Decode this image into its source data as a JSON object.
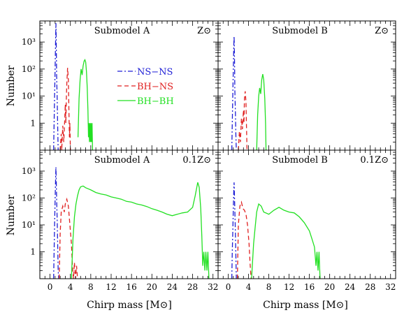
{
  "chart_data": {
    "type": "line",
    "xlabel": "Chirp mass [M⊙]",
    "ylabel": "Number",
    "scale": "log-y",
    "xlim": [
      -2,
      33
    ],
    "ylim": [
      0.1,
      6000
    ],
    "x_ticks": [
      0,
      4,
      8,
      12,
      16,
      20,
      24,
      28,
      32
    ],
    "y_ticks": [
      {
        "value": 1,
        "label": "1"
      },
      {
        "value": 10,
        "label": "10¹"
      },
      {
        "value": 100,
        "label": "10²"
      },
      {
        "value": 1000,
        "label": "10³"
      }
    ],
    "legend": {
      "placement": "upper middle of top-left panel",
      "entries": [
        {
          "name": "NS−NS",
          "color": "#1f1fd6",
          "dash": "dash-dot"
        },
        {
          "name": "BH−NS",
          "color": "#e02020",
          "dash": "dashed"
        },
        {
          "name": "BH−BH",
          "color": "#22e022",
          "dash": "solid"
        }
      ]
    },
    "colors": {
      "NS-NS": "#1f1fd6",
      "BH-NS": "#e02020",
      "BH-BH": "#22e022"
    },
    "panels": [
      {
        "id": "A-solar",
        "label": "Submodel A",
        "metallicity": "Z⊙",
        "series": [
          {
            "key": "NS-NS",
            "points": [
              [
                0.7,
                0.1
              ],
              [
                0.8,
                1
              ],
              [
                0.9,
                10
              ],
              [
                1.0,
                120
              ],
              [
                1.1,
                1500
              ],
              [
                1.15,
                5000
              ],
              [
                1.2,
                2000
              ],
              [
                1.25,
                300
              ],
              [
                1.3,
                60
              ],
              [
                1.4,
                8
              ],
              [
                1.5,
                0.8
              ],
              [
                1.6,
                0.1
              ]
            ]
          },
          {
            "key": "BH-NS",
            "points": [
              [
                2.0,
                0.1
              ],
              [
                2.2,
                0.4
              ],
              [
                2.3,
                0.1
              ],
              [
                2.5,
                0.8
              ],
              [
                2.7,
                0.2
              ],
              [
                2.9,
                1.5
              ],
              [
                3.0,
                5
              ],
              [
                3.1,
                1
              ],
              [
                3.2,
                8
              ],
              [
                3.3,
                30
              ],
              [
                3.45,
                110
              ],
              [
                3.6,
                40
              ],
              [
                3.7,
                4
              ],
              [
                3.8,
                0.3
              ],
              [
                3.9,
                1
              ],
              [
                4.0,
                0.1
              ]
            ]
          },
          {
            "key": "BH-BH",
            "points": [
              [
                5.5,
                0.3
              ],
              [
                5.7,
                8
              ],
              [
                5.9,
                40
              ],
              [
                6.1,
                100
              ],
              [
                6.3,
                60
              ],
              [
                6.5,
                130
              ],
              [
                6.7,
                200
              ],
              [
                6.85,
                220
              ],
              [
                7.0,
                180
              ],
              [
                7.15,
                80
              ],
              [
                7.3,
                20
              ],
              [
                7.45,
                3
              ],
              [
                7.55,
                0.3
              ],
              [
                7.65,
                1
              ],
              [
                7.75,
                0.2
              ],
              [
                7.85,
                1
              ],
              [
                7.95,
                0.2
              ],
              [
                8.05,
                1
              ],
              [
                8.15,
                0.2
              ],
              [
                8.25,
                1
              ],
              [
                8.35,
                0.1
              ]
            ]
          }
        ]
      },
      {
        "id": "B-solar",
        "label": "Submodel B",
        "metallicity": "Z⊙",
        "series": [
          {
            "key": "NS-NS",
            "points": [
              [
                0.7,
                0.1
              ],
              [
                0.8,
                1
              ],
              [
                0.9,
                10
              ],
              [
                1.0,
                100
              ],
              [
                1.1,
                800
              ],
              [
                1.15,
                1600
              ],
              [
                1.2,
                700
              ],
              [
                1.25,
                150
              ],
              [
                1.3,
                20
              ],
              [
                1.4,
                3
              ],
              [
                1.5,
                0.4
              ],
              [
                1.6,
                0.1
              ]
            ]
          },
          {
            "key": "BH-NS",
            "points": [
              [
                2.0,
                0.1
              ],
              [
                2.2,
                0.5
              ],
              [
                2.4,
                0.2
              ],
              [
                2.6,
                1.5
              ],
              [
                2.8,
                0.6
              ],
              [
                3.0,
                3
              ],
              [
                3.1,
                1
              ],
              [
                3.2,
                8
              ],
              [
                3.35,
                15
              ],
              [
                3.5,
                6
              ],
              [
                3.6,
                0.8
              ],
              [
                3.7,
                0.1
              ]
            ]
          },
          {
            "key": "BH-BH",
            "points": [
              [
                5.6,
                0.1
              ],
              [
                5.8,
                2
              ],
              [
                6.0,
                10
              ],
              [
                6.2,
                20
              ],
              [
                6.4,
                12
              ],
              [
                6.6,
                40
              ],
              [
                6.8,
                65
              ],
              [
                7.0,
                40
              ],
              [
                7.2,
                8
              ],
              [
                7.35,
                1
              ],
              [
                7.45,
                0.1
              ]
            ]
          }
        ]
      },
      {
        "id": "A-0.1solar",
        "label": "Submodel A",
        "metallicity": "0.1Z⊙",
        "series": [
          {
            "key": "NS-NS",
            "points": [
              [
                0.7,
                0.1
              ],
              [
                0.8,
                1
              ],
              [
                0.9,
                10
              ],
              [
                1.0,
                100
              ],
              [
                1.1,
                600
              ],
              [
                1.15,
                1400
              ],
              [
                1.2,
                700
              ],
              [
                1.3,
                100
              ],
              [
                1.4,
                15
              ],
              [
                1.5,
                2
              ],
              [
                1.6,
                0.2
              ],
              [
                1.7,
                0.1
              ]
            ]
          },
          {
            "key": "BH-NS",
            "points": [
              [
                1.8,
                0.1
              ],
              [
                2.0,
                5
              ],
              [
                2.2,
                30
              ],
              [
                2.5,
                50
              ],
              [
                2.8,
                30
              ],
              [
                3.0,
                60
              ],
              [
                3.3,
                90
              ],
              [
                3.6,
                50
              ],
              [
                3.9,
                10
              ],
              [
                4.2,
                2
              ],
              [
                4.4,
                0.3
              ],
              [
                4.6,
                0.1
              ],
              [
                4.8,
                0.4
              ],
              [
                5.0,
                0.1
              ],
              [
                5.2,
                0.3
              ],
              [
                5.4,
                0.1
              ]
            ]
          },
          {
            "key": "BH-BH",
            "points": [
              [
                4.2,
                0.1
              ],
              [
                4.5,
                3
              ],
              [
                4.8,
                20
              ],
              [
                5.1,
                60
              ],
              [
                5.4,
                120
              ],
              [
                5.7,
                200
              ],
              [
                6.0,
                260
              ],
              [
                6.5,
                280
              ],
              [
                7.0,
                240
              ],
              [
                8,
                200
              ],
              [
                9,
                160
              ],
              [
                10,
                140
              ],
              [
                11,
                130
              ],
              [
                12,
                110
              ],
              [
                13,
                100
              ],
              [
                14,
                90
              ],
              [
                15,
                75
              ],
              [
                16,
                70
              ],
              [
                17,
                60
              ],
              [
                18,
                55
              ],
              [
                19,
                48
              ],
              [
                20,
                40
              ],
              [
                21,
                35
              ],
              [
                22,
                30
              ],
              [
                23,
                25
              ],
              [
                24,
                22
              ],
              [
                25,
                25
              ],
              [
                26,
                28
              ],
              [
                27,
                30
              ],
              [
                28,
                45
              ],
              [
                28.5,
                120
              ],
              [
                29.0,
                380
              ],
              [
                29.3,
                250
              ],
              [
                29.6,
                40
              ],
              [
                29.8,
                4
              ],
              [
                30.0,
                0.3
              ],
              [
                30.2,
                1
              ],
              [
                30.4,
                0.2
              ],
              [
                30.6,
                1
              ],
              [
                30.8,
                0.2
              ],
              [
                31.0,
                1
              ],
              [
                31.2,
                0.1
              ]
            ]
          }
        ]
      },
      {
        "id": "B-0.1solar",
        "label": "Submodel B",
        "metallicity": "0.1Z⊙",
        "series": [
          {
            "key": "NS-NS",
            "points": [
              [
                0.7,
                0.1
              ],
              [
                0.8,
                1
              ],
              [
                0.9,
                5
              ],
              [
                1.0,
                40
              ],
              [
                1.1,
                200
              ],
              [
                1.15,
                380
              ],
              [
                1.2,
                200
              ],
              [
                1.3,
                40
              ],
              [
                1.4,
                6
              ],
              [
                1.5,
                0.8
              ],
              [
                1.6,
                0.1
              ]
            ]
          },
          {
            "key": "BH-NS",
            "points": [
              [
                1.8,
                0.1
              ],
              [
                2.0,
                10
              ],
              [
                2.3,
                50
              ],
              [
                2.6,
                70
              ],
              [
                2.9,
                40
              ],
              [
                3.2,
                35
              ],
              [
                3.5,
                25
              ],
              [
                3.8,
                10
              ],
              [
                4.1,
                2
              ],
              [
                4.3,
                0.4
              ],
              [
                4.5,
                0.1
              ]
            ]
          },
          {
            "key": "BH-BH",
            "points": [
              [
                4.6,
                0.1
              ],
              [
                5.0,
                2
              ],
              [
                5.3,
                8
              ],
              [
                5.6,
                30
              ],
              [
                6.0,
                60
              ],
              [
                6.5,
                50
              ],
              [
                7,
                30
              ],
              [
                8,
                25
              ],
              [
                9,
                35
              ],
              [
                10,
                45
              ],
              [
                11,
                35
              ],
              [
                12,
                30
              ],
              [
                13,
                28
              ],
              [
                14,
                20
              ],
              [
                15,
                12
              ],
              [
                16,
                6
              ],
              [
                16.5,
                3
              ],
              [
                17,
                1.5
              ],
              [
                17.3,
                0.3
              ],
              [
                17.5,
                1
              ],
              [
                17.7,
                0.2
              ],
              [
                17.9,
                1
              ],
              [
                18.1,
                0.1
              ]
            ]
          }
        ]
      }
    ]
  }
}
